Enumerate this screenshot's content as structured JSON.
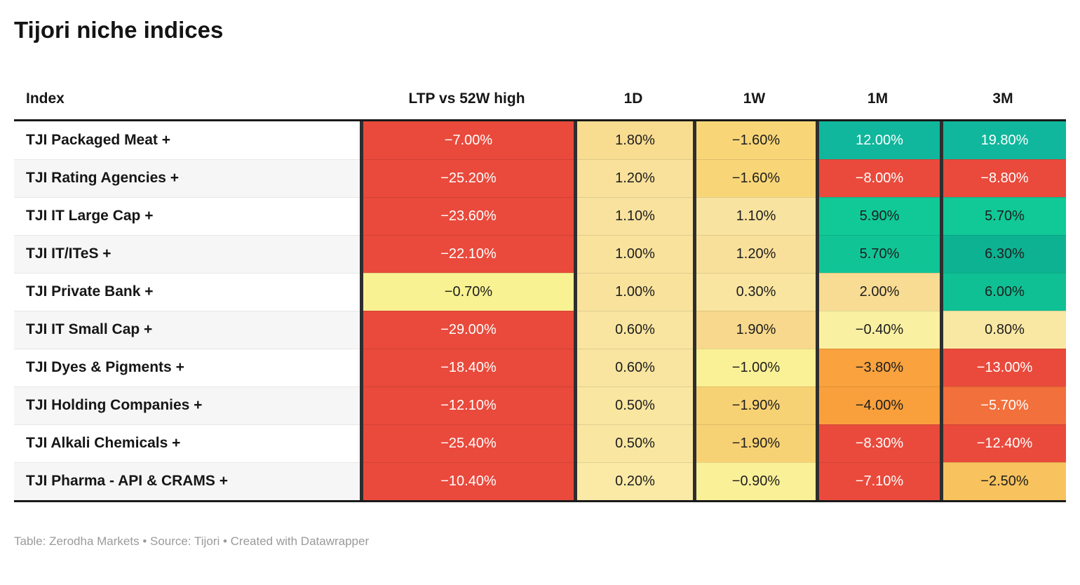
{
  "chart_data": {
    "type": "table",
    "title": "Tijori niche indices",
    "columns": [
      "Index",
      "LTP vs 52W high",
      "1D",
      "1W",
      "1M",
      "3M"
    ],
    "rows": [
      {
        "index": "TJI Packaged Meat +",
        "values": [
          -7.0,
          1.8,
          -1.6,
          12.0,
          19.8
        ],
        "display": [
          "−7.00%",
          "1.80%",
          "−1.60%",
          "12.00%",
          "19.80%"
        ],
        "bg": [
          "#E94A3C",
          "#F8DC90",
          "#F8D678",
          "#10B79C",
          "#10B79C"
        ],
        "fg": [
          "#FFFFFF",
          "#1D1D1D",
          "#1D1D1D",
          "#FFFFFF",
          "#FFFFFF"
        ]
      },
      {
        "index": "TJI Rating Agencies +",
        "values": [
          -25.2,
          1.2,
          -1.6,
          -8.0,
          -8.8
        ],
        "display": [
          "−25.20%",
          "1.20%",
          "−1.60%",
          "−8.00%",
          "−8.80%"
        ],
        "bg": [
          "#E94A3C",
          "#F9E19B",
          "#F8D678",
          "#E94A3C",
          "#E94A3C"
        ],
        "fg": [
          "#FFFFFF",
          "#1D1D1D",
          "#1D1D1D",
          "#FFFFFF",
          "#FFFFFF"
        ]
      },
      {
        "index": "TJI IT Large Cap +",
        "values": [
          -23.6,
          1.1,
          1.1,
          5.9,
          5.7
        ],
        "display": [
          "−23.60%",
          "1.10%",
          "1.10%",
          "5.90%",
          "5.70%"
        ],
        "bg": [
          "#E94A3C",
          "#F9E29E",
          "#F9E3A0",
          "#10C997",
          "#10C997"
        ],
        "fg": [
          "#FFFFFF",
          "#1D1D1D",
          "#1D1D1D",
          "#1D1D1D",
          "#1D1D1D"
        ]
      },
      {
        "index": "TJI IT/ITeS +",
        "values": [
          -22.1,
          1.0,
          1.2,
          5.7,
          6.3
        ],
        "display": [
          "−22.10%",
          "1.00%",
          "1.20%",
          "5.70%",
          "6.30%"
        ],
        "bg": [
          "#E94A3C",
          "#F9E29C",
          "#F9E09A",
          "#10C496",
          "#0DB292"
        ],
        "fg": [
          "#FFFFFF",
          "#1D1D1D",
          "#1D1D1D",
          "#1D1D1D",
          "#1D1D1D"
        ]
      },
      {
        "index": "TJI Private Bank +",
        "values": [
          -0.7,
          1.0,
          0.3,
          2.0,
          6.0
        ],
        "display": [
          "−0.70%",
          "1.00%",
          "0.30%",
          "2.00%",
          "6.00%"
        ],
        "bg": [
          "#F8F292",
          "#F9E29C",
          "#F9E5A0",
          "#F8DC93",
          "#0FC095"
        ],
        "fg": [
          "#1D1D1D",
          "#1D1D1D",
          "#1D1D1D",
          "#1D1D1D",
          "#1D1D1D"
        ]
      },
      {
        "index": "TJI IT Small Cap +",
        "values": [
          -29.0,
          0.6,
          1.9,
          -0.4,
          0.8
        ],
        "display": [
          "−29.00%",
          "0.60%",
          "1.90%",
          "−0.40%",
          "0.80%"
        ],
        "bg": [
          "#E94A3C",
          "#F9E5A0",
          "#F8D88C",
          "#F9F0A2",
          "#F9E8A3"
        ],
        "fg": [
          "#FFFFFF",
          "#1D1D1D",
          "#1D1D1D",
          "#1D1D1D",
          "#1D1D1D"
        ]
      },
      {
        "index": "TJI Dyes & Pigments +",
        "values": [
          -18.4,
          0.6,
          -1.0,
          -3.8,
          -13.0
        ],
        "display": [
          "−18.40%",
          "0.60%",
          "−1.00%",
          "−3.80%",
          "−13.00%"
        ],
        "bg": [
          "#E94A3C",
          "#F9E5A0",
          "#FAF096",
          "#F9A23E",
          "#E94A3C"
        ],
        "fg": [
          "#FFFFFF",
          "#1D1D1D",
          "#1D1D1D",
          "#1D1D1D",
          "#FFFFFF"
        ]
      },
      {
        "index": "TJI Holding Companies +",
        "values": [
          -12.1,
          0.5,
          -1.9,
          -4.0,
          -5.7
        ],
        "display": [
          "−12.10%",
          "0.50%",
          "−1.90%",
          "−4.00%",
          "−5.70%"
        ],
        "bg": [
          "#E94A3C",
          "#F9E6A1",
          "#F7D274",
          "#F9A03C",
          "#F2703B"
        ],
        "fg": [
          "#FFFFFF",
          "#1D1D1D",
          "#1D1D1D",
          "#1D1D1D",
          "#FFFFFF"
        ]
      },
      {
        "index": "TJI Alkali Chemicals +",
        "values": [
          -25.4,
          0.5,
          -1.9,
          -8.3,
          -12.4
        ],
        "display": [
          "−25.40%",
          "0.50%",
          "−1.90%",
          "−8.30%",
          "−12.40%"
        ],
        "bg": [
          "#E94A3C",
          "#F9E6A1",
          "#F7D274",
          "#E94A3C",
          "#E94A3C"
        ],
        "fg": [
          "#FFFFFF",
          "#1D1D1D",
          "#1D1D1D",
          "#FFFFFF",
          "#FFFFFF"
        ]
      },
      {
        "index": "TJI Pharma - API & CRAMS +",
        "values": [
          -10.4,
          0.2,
          -0.9,
          -7.1,
          -2.5
        ],
        "display": [
          "−10.40%",
          "0.20%",
          "−0.90%",
          "−7.10%",
          "−2.50%"
        ],
        "bg": [
          "#E94A3C",
          "#FAEAA6",
          "#FAF098",
          "#E94A3C",
          "#F8C35E"
        ],
        "fg": [
          "#FFFFFF",
          "#1D1D1D",
          "#1D1D1D",
          "#FFFFFF",
          "#1D1D1D"
        ]
      }
    ],
    "colors": {
      "negative_strong": "#E94A3C",
      "negative_mid": "#F9A03C",
      "neutral": "#FAF096",
      "positive_mid": "#10C997",
      "positive_strong": "#10B79C",
      "column_border": "#2E2E2E",
      "row_stripe": "#F6F6F6"
    }
  },
  "footer": {
    "table_label": "Table: ",
    "table_link": "Zerodha Markets",
    "sep1": " • ",
    "source_label": "Source: ",
    "source_link": "Tijori",
    "sep2": " • ",
    "credit_label": "Created with ",
    "credit_link": "Datawrapper"
  }
}
